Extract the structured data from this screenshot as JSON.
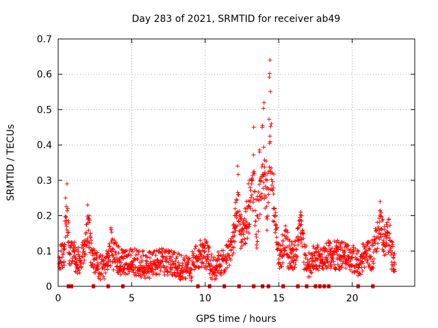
{
  "chart_data": {
    "type": "scatter",
    "title": "Day 283 of 2021, SRMTID for receiver ab49",
    "xlabel": "GPS time / hours",
    "ylabel": "SRMTID / TECUs",
    "xlim": [
      0,
      24.25
    ],
    "ylim": [
      0,
      0.7
    ],
    "xticks": [
      0,
      5,
      10,
      15,
      20
    ],
    "yticks": [
      0,
      0.1,
      0.2,
      0.3,
      0.4,
      0.5,
      0.6,
      0.7
    ],
    "xtick_labels": [
      "0",
      "5",
      "10",
      "15",
      "20"
    ],
    "ytick_labels": [
      "0",
      "0.1",
      "0.2",
      "0.3",
      "0.4",
      "0.5",
      "0.6",
      "0.7"
    ],
    "grid": true,
    "marker": "+",
    "series": [
      {
        "name": "SRMTID",
        "color": "#ff0000",
        "points_note": "dense cloud of approx. 2500 '+' markers; values below are an estimate read off the gridlines",
        "x": [
          0.1,
          0.2,
          0.3,
          0.4,
          0.5,
          0.6,
          0.65,
          0.7,
          0.8,
          1.0,
          1.2,
          1.5,
          1.8,
          2.0,
          2.1,
          2.2,
          2.5,
          3.0,
          3.4,
          3.6,
          3.8,
          4.0,
          4.5,
          5.0,
          6.0,
          7.0,
          8.0,
          9.0,
          9.8,
          10.5,
          11.0,
          11.5,
          12.0,
          12.2,
          12.5,
          12.8,
          13.0,
          13.3,
          13.5,
          13.7,
          14.0,
          14.2,
          14.4,
          14.5,
          14.8,
          15.0,
          15.5,
          16.0,
          16.5,
          17.0,
          17.5,
          18.0,
          18.5,
          19.0,
          19.5,
          20.0,
          20.5,
          21.0,
          21.5,
          21.9,
          22.2,
          22.5,
          22.8
        ],
        "y": [
          0.08,
          0.1,
          0.12,
          0.07,
          0.25,
          0.29,
          0.22,
          0.18,
          0.09,
          0.1,
          0.08,
          0.07,
          0.12,
          0.23,
          0.2,
          0.15,
          0.06,
          0.05,
          0.07,
          0.16,
          0.12,
          0.08,
          0.06,
          0.07,
          0.06,
          0.07,
          0.06,
          0.05,
          0.12,
          0.05,
          0.06,
          0.08,
          0.2,
          0.34,
          0.16,
          0.24,
          0.3,
          0.45,
          0.2,
          0.38,
          0.52,
          0.3,
          0.64,
          0.46,
          0.2,
          0.12,
          0.16,
          0.1,
          0.21,
          0.06,
          0.08,
          0.07,
          0.1,
          0.13,
          0.1,
          0.08,
          0.06,
          0.12,
          0.14,
          0.24,
          0.16,
          0.19,
          0.08
        ]
      }
    ],
    "rug_note": "short markers along x-axis at y=0 marking observation gaps",
    "rug_x": [
      0.7,
      0.8,
      0.9,
      2.4,
      3.4,
      4.4,
      9.5,
      10.3,
      11.3,
      12.3,
      13.3,
      13.9,
      14.3,
      15.3,
      16.3,
      16.9,
      17.5,
      17.8,
      18.1,
      18.4,
      20.4,
      21.4
    ]
  }
}
